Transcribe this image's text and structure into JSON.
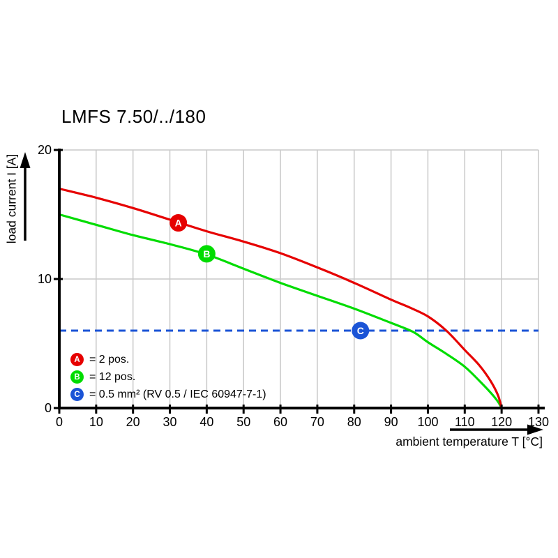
{
  "chart_data": {
    "type": "line",
    "title": "LMFS 7.50/../180",
    "xlabel": "ambient temperature T [°C]",
    "ylabel": "load current I [A]",
    "xlim": [
      0,
      130
    ],
    "ylim": [
      0,
      20
    ],
    "x_ticks": [
      0,
      10,
      20,
      30,
      40,
      50,
      60,
      70,
      80,
      90,
      100,
      110,
      120,
      130
    ],
    "y_ticks": [
      0,
      10,
      20
    ],
    "grid": true,
    "grid_color": "#c9c9c9",
    "axis_color": "#000000",
    "legend_position": "bottom-left-inside",
    "series": [
      {
        "name": "A",
        "label": "= 2 pos.",
        "color": "#e60000",
        "style": "solid",
        "marker": {
          "letter": "A",
          "T": 32.3,
          "I": 14.35
        },
        "points": [
          [
            0,
            17
          ],
          [
            10,
            16.3
          ],
          [
            20,
            15.5
          ],
          [
            30,
            14.6
          ],
          [
            40,
            13.7
          ],
          [
            50,
            12.9
          ],
          [
            60,
            12
          ],
          [
            70,
            10.9
          ],
          [
            80,
            9.7
          ],
          [
            90,
            8.4
          ],
          [
            95,
            7.8
          ],
          [
            100,
            7.1
          ],
          [
            105,
            6
          ],
          [
            110,
            4.5
          ],
          [
            114,
            3.3
          ],
          [
            117,
            2.1
          ],
          [
            119,
            1
          ],
          [
            120,
            0
          ]
        ]
      },
      {
        "name": "B",
        "label": "= 12 pos.",
        "color": "#00dc00",
        "style": "solid",
        "marker": {
          "letter": "B",
          "T": 40,
          "I": 11.95
        },
        "points": [
          [
            0,
            15
          ],
          [
            10,
            14.2
          ],
          [
            20,
            13.4
          ],
          [
            30,
            12.7
          ],
          [
            40,
            11.9
          ],
          [
            50,
            10.8
          ],
          [
            60,
            9.7
          ],
          [
            70,
            8.7
          ],
          [
            80,
            7.7
          ],
          [
            90,
            6.6
          ],
          [
            96,
            5.9
          ],
          [
            100,
            5.1
          ],
          [
            105,
            4.2
          ],
          [
            110,
            3.2
          ],
          [
            114,
            2.1
          ],
          [
            117,
            1.2
          ],
          [
            119,
            0.5
          ],
          [
            120,
            0
          ]
        ]
      },
      {
        "name": "C",
        "label": "= 0.5 mm² (RV 0.5 / IEC 60947-7-1)",
        "color": "#1b54d6",
        "style": "dashed-hline",
        "value": 6,
        "marker": {
          "letter": "C",
          "T": 81.7,
          "I": 6
        }
      }
    ]
  }
}
